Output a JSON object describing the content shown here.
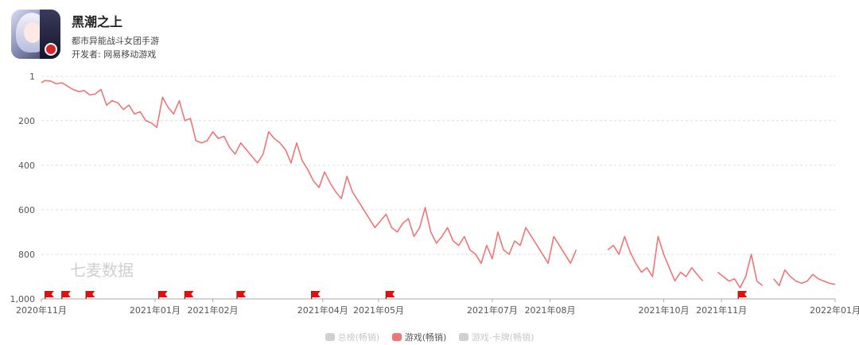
{
  "app": {
    "name": "黑潮之上",
    "subtitle": "都市异能战斗女团手游",
    "developer": "开发者: 网易移动游戏"
  },
  "watermark": "七麦数据",
  "colors": {
    "series": "#f07575",
    "flag": "#e01010",
    "grid": "#dddddd",
    "axis": "#aaaaaa",
    "inactive": "#d0d0d0"
  },
  "legend": [
    {
      "label": "总榜(畅销)",
      "active": false
    },
    {
      "label": "游戏(畅销)",
      "active": true
    },
    {
      "label": "游戏-卡牌(畅销)",
      "active": false
    }
  ],
  "chart_data": {
    "type": "line",
    "title": "",
    "xlabel": "",
    "ylabel": "",
    "y_inverted": true,
    "ylim": [
      1,
      1000
    ],
    "y_ticks": [
      "1",
      "200",
      "400",
      "600",
      "800",
      "1,000"
    ],
    "y_tick_values": [
      1,
      200,
      400,
      600,
      800,
      1000
    ],
    "xlim": [
      "2020-11-01",
      "2022-01-01"
    ],
    "x_ticks": [
      {
        "label": "2020年11月",
        "date": "2020-11-01"
      },
      {
        "label": "2021年01月",
        "date": "2021-01-01"
      },
      {
        "label": "2021年02月",
        "date": "2021-02-01"
      },
      {
        "label": "2021年04月",
        "date": "2021-04-01"
      },
      {
        "label": "2021年05月",
        "date": "2021-05-01"
      },
      {
        "label": "2021年07月",
        "date": "2021-07-01"
      },
      {
        "label": "2021年08月",
        "date": "2021-08-01"
      },
      {
        "label": "2021年10月",
        "date": "2021-10-01"
      },
      {
        "label": "2021年11月",
        "date": "2021-11-01"
      },
      {
        "label": "2022年01月",
        "date": "2022-01-01"
      }
    ],
    "grid": true,
    "legend_position": "bottom",
    "flags": [
      "2020-11-03",
      "2020-11-12",
      "2020-11-25",
      "2021-01-03",
      "2021-01-17",
      "2021-02-14",
      "2021-03-26",
      "2021-05-05",
      "2021-11-10"
    ],
    "series": [
      {
        "name": "游戏(畅销)",
        "color": "#f07575",
        "segments": [
          {
            "x": [
              "2020-11-01",
              "2020-11-03",
              "2020-11-06",
              "2020-11-09",
              "2020-11-12",
              "2020-11-15",
              "2020-11-18",
              "2020-11-21",
              "2020-11-24",
              "2020-11-27",
              "2020-11-30",
              "2020-12-03",
              "2020-12-06",
              "2020-12-09",
              "2020-12-12",
              "2020-12-15",
              "2020-12-18",
              "2020-12-21",
              "2020-12-24",
              "2020-12-27",
              "2020-12-30",
              "2021-01-02",
              "2021-01-05",
              "2021-01-08",
              "2021-01-11",
              "2021-01-14",
              "2021-01-17",
              "2021-01-20",
              "2021-01-23",
              "2021-01-26",
              "2021-01-29",
              "2021-02-01",
              "2021-02-04",
              "2021-02-07",
              "2021-02-10",
              "2021-02-13",
              "2021-02-16",
              "2021-02-19",
              "2021-02-22",
              "2021-02-25",
              "2021-02-28",
              "2021-03-03",
              "2021-03-06",
              "2021-03-09",
              "2021-03-12",
              "2021-03-15",
              "2021-03-18",
              "2021-03-21",
              "2021-03-24",
              "2021-03-27",
              "2021-03-30",
              "2021-04-02",
              "2021-04-05",
              "2021-04-08",
              "2021-04-11",
              "2021-04-14",
              "2021-04-17",
              "2021-04-20",
              "2021-04-23",
              "2021-04-26",
              "2021-04-29",
              "2021-05-02",
              "2021-05-05",
              "2021-05-08",
              "2021-05-11",
              "2021-05-14",
              "2021-05-17",
              "2021-05-20",
              "2021-05-23",
              "2021-05-26",
              "2021-05-29",
              "2021-06-01",
              "2021-06-04",
              "2021-06-07",
              "2021-06-10",
              "2021-06-13",
              "2021-06-16",
              "2021-06-19",
              "2021-06-22",
              "2021-06-25",
              "2021-06-28",
              "2021-07-01",
              "2021-07-04",
              "2021-07-07",
              "2021-07-10",
              "2021-07-13",
              "2021-07-16",
              "2021-07-19",
              "2021-07-22",
              "2021-07-25",
              "2021-07-28",
              "2021-07-31",
              "2021-08-03",
              "2021-08-06",
              "2021-08-09",
              "2021-08-12",
              "2021-08-15"
            ],
            "y": [
              30,
              20,
              22,
              35,
              30,
              45,
              60,
              70,
              65,
              85,
              80,
              60,
              130,
              110,
              120,
              150,
              130,
              170,
              160,
              200,
              210,
              230,
              95,
              140,
              170,
              110,
              200,
              190,
              290,
              300,
              290,
              250,
              280,
              270,
              320,
              350,
              300,
              330,
              360,
              390,
              350,
              250,
              280,
              300,
              330,
              390,
              300,
              380,
              420,
              470,
              500,
              430,
              480,
              520,
              550,
              450,
              520,
              560,
              600,
              640,
              680,
              650,
              620,
              680,
              700,
              660,
              640,
              720,
              680,
              590,
              700,
              750,
              720,
              680,
              740,
              760,
              720,
              780,
              800,
              840,
              760,
              820,
              700,
              780,
              800,
              740,
              760,
              680,
              720,
              760,
              800,
              840,
              720,
              760,
              800,
              840,
              780
            ]
          },
          {
            "x": [
              "2021-09-01",
              "2021-09-04",
              "2021-09-07",
              "2021-09-10",
              "2021-09-13",
              "2021-09-16",
              "2021-09-19",
              "2021-09-22",
              "2021-09-25",
              "2021-09-28",
              "2021-10-01",
              "2021-10-04",
              "2021-10-07",
              "2021-10-10",
              "2021-10-13",
              "2021-10-16",
              "2021-10-19",
              "2021-10-22"
            ],
            "y": [
              780,
              760,
              800,
              720,
              790,
              840,
              880,
              860,
              900,
              720,
              800,
              860,
              920,
              880,
              900,
              860,
              890,
              920
            ]
          },
          {
            "x": [
              "2021-10-30",
              "2021-11-02",
              "2021-11-05",
              "2021-11-08",
              "2021-11-11",
              "2021-11-14",
              "2021-11-17",
              "2021-11-20",
              "2021-11-23"
            ],
            "y": [
              880,
              900,
              920,
              910,
              950,
              900,
              800,
              920,
              940
            ]
          },
          {
            "x": [
              "2021-11-29",
              "2021-12-02",
              "2021-12-05",
              "2021-12-08",
              "2021-12-11",
              "2021-12-14",
              "2021-12-17",
              "2021-12-20",
              "2021-12-23",
              "2021-12-26",
              "2021-12-29",
              "2022-01-01"
            ],
            "y": [
              910,
              940,
              870,
              900,
              920,
              930,
              920,
              890,
              910,
              920,
              930,
              935
            ]
          }
        ]
      }
    ]
  }
}
